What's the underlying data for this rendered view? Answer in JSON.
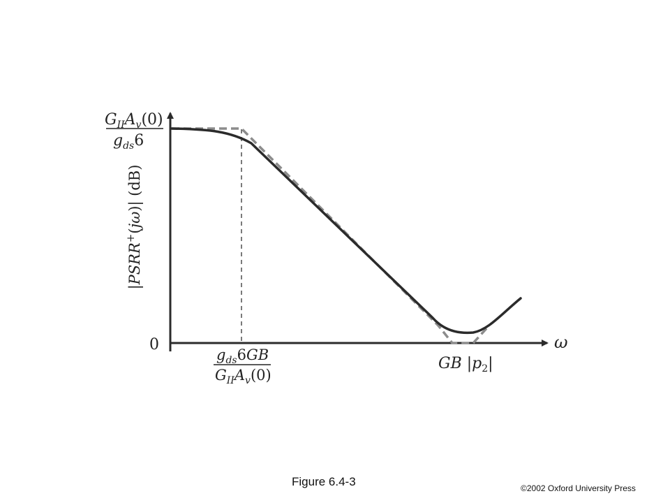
{
  "figure": {
    "caption": "Figure 6.4-3",
    "copyright": "©2002 Oxford University Press"
  },
  "y_axis": {
    "label": "|PSRR+(jω)| (dB)",
    "top_label": {
      "numerator": "GIIAv(0)",
      "denominator": "gds6"
    },
    "zero_label": "0"
  },
  "x_axis": {
    "label": "ω",
    "tick1": {
      "numerator": "gds6GB",
      "denominator": "GIIAv(0)"
    },
    "tick2": "GB |p2|"
  },
  "curves": {
    "actual": {
      "style": "solid",
      "color": "#2b2b2b"
    },
    "asymptote": {
      "style": "dashed",
      "color": "#8c8c8c"
    }
  }
}
